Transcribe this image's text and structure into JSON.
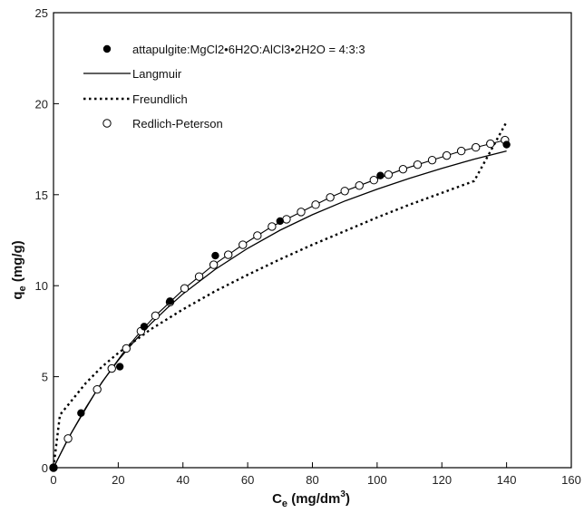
{
  "chart_data": {
    "type": "scatter",
    "xlabel": {
      "main": "C",
      "sub": "e",
      "unit_pre": " (mg/dm",
      "unit_sup": "3",
      "unit_post": ")"
    },
    "ylabel": {
      "main": "q",
      "sub": "e",
      "unit": " (mg/g)"
    },
    "xlim": [
      0,
      160
    ],
    "ylim": [
      0,
      25
    ],
    "x_ticks": [
      0,
      20,
      40,
      60,
      80,
      100,
      120,
      140,
      160
    ],
    "y_ticks": [
      0,
      5,
      10,
      15,
      20,
      25
    ],
    "grid": false,
    "legend_position": "top-left",
    "series": [
      {
        "name": "attapulgite:MgCl2•6H2O:AlCl3•2H2O = 4:3:3",
        "kind": "filled-markers",
        "x": [
          0,
          8.5,
          20.5,
          28,
          36,
          50,
          70,
          101,
          140
        ],
        "y": [
          0,
          3.0,
          5.55,
          7.75,
          9.15,
          11.65,
          13.55,
          16.05,
          17.75
        ]
      },
      {
        "name": "Langmuir",
        "kind": "solid-line",
        "x": [
          0,
          5,
          10,
          15,
          20,
          25,
          30,
          35,
          40,
          50,
          60,
          70,
          80,
          90,
          100,
          110,
          120,
          130,
          140
        ],
        "y": [
          0,
          1.75,
          3.3,
          4.7,
          5.9,
          6.95,
          7.9,
          8.75,
          9.55,
          10.9,
          12.05,
          13.05,
          13.9,
          14.65,
          15.3,
          15.9,
          16.45,
          16.95,
          17.4
        ]
      },
      {
        "name": "Freundlich",
        "kind": "dotted-line",
        "x": [
          0,
          2,
          5,
          10,
          15,
          20,
          30,
          40,
          50,
          60,
          70,
          80,
          90,
          100,
          110,
          120,
          130,
          140
        ],
        "y": [
          0,
          2.9,
          3.55,
          4.65,
          5.55,
          6.3,
          7.6,
          8.7,
          9.7,
          10.6,
          11.45,
          12.25,
          13.0,
          13.75,
          14.45,
          15.1,
          15.75,
          19.0
        ]
      },
      {
        "name": "Redlich-Peterson",
        "kind": "open-markers",
        "x": [
          0,
          4.5,
          13.5,
          18,
          22.5,
          27,
          31.5,
          36,
          40.5,
          45,
          49.5,
          54,
          58.5,
          63,
          67.5,
          72,
          76.5,
          81,
          85.5,
          90,
          94.5,
          99,
          103.5,
          108,
          112.5,
          117,
          121.5,
          126,
          130.5,
          135,
          139.5
        ],
        "y": [
          0,
          1.6,
          4.3,
          5.45,
          6.55,
          7.5,
          8.35,
          9.1,
          9.85,
          10.5,
          11.15,
          11.7,
          12.25,
          12.75,
          13.25,
          13.65,
          14.05,
          14.45,
          14.85,
          15.2,
          15.5,
          15.8,
          16.1,
          16.4,
          16.65,
          16.9,
          17.15,
          17.4,
          17.6,
          17.8,
          18.0
        ]
      }
    ]
  }
}
